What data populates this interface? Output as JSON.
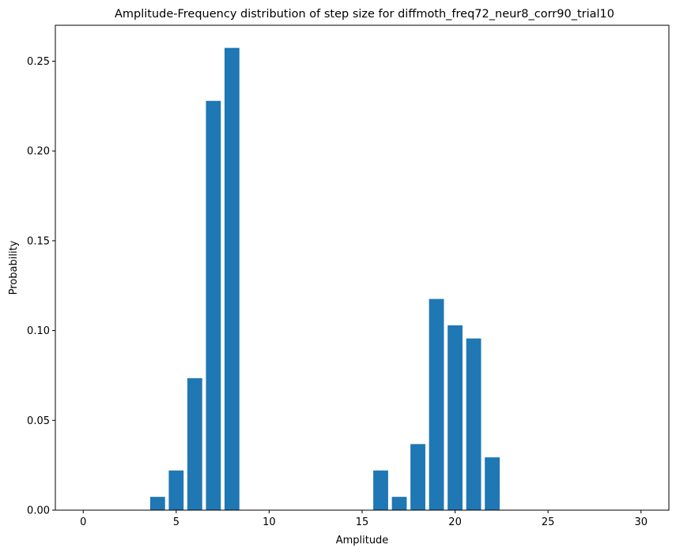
{
  "chart_data": {
    "type": "bar",
    "title": "Amplitude-Frequency distribution of step size for diffmoth_freq72_neur8_corr90_trial10",
    "xlabel": "Amplitude",
    "ylabel": "Probability",
    "xlim": [
      -1.5,
      31.5
    ],
    "ylim": [
      0,
      0.27
    ],
    "xticks": [
      0,
      5,
      10,
      15,
      20,
      25,
      30
    ],
    "xtick_labels": [
      "0",
      "5",
      "10",
      "15",
      "20",
      "25",
      "30"
    ],
    "yticks": [
      0.0,
      0.05,
      0.1,
      0.15,
      0.2,
      0.25
    ],
    "ytick_labels": [
      "0.00",
      "0.05",
      "0.10",
      "0.15",
      "0.20",
      "0.25"
    ],
    "bar_color": "#1f77b4",
    "grid": false,
    "x": [
      0,
      1,
      2,
      3,
      4,
      5,
      6,
      7,
      8,
      9,
      10,
      11,
      12,
      13,
      14,
      15,
      16,
      17,
      18,
      19,
      20,
      21,
      22,
      23,
      24,
      25,
      26,
      27,
      28,
      29,
      30
    ],
    "values": [
      0,
      0,
      0,
      0,
      0.0074,
      0.0221,
      0.0735,
      0.2279,
      0.2574,
      0,
      0,
      0,
      0,
      0,
      0,
      0,
      0.0221,
      0.0074,
      0.0368,
      0.1176,
      0.1029,
      0.0956,
      0.0294,
      0,
      0,
      0,
      0,
      0,
      0,
      0,
      0
    ]
  }
}
